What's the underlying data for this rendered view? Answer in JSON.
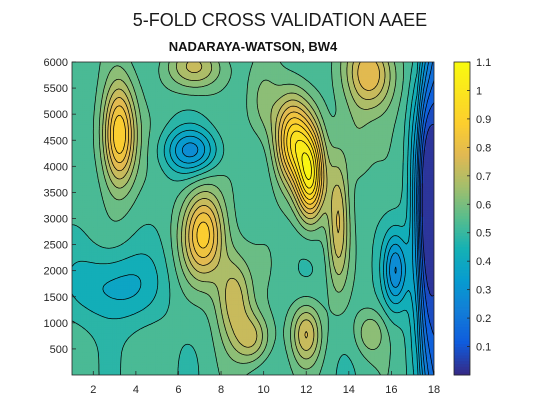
{
  "chart_data": {
    "type": "contour",
    "title": "5-FOLD CROSS VALIDATION AAEE",
    "subtitle": "NADARAYA-WATSON, BW4",
    "xlabel": "",
    "ylabel": "",
    "xlim": [
      1,
      18
    ],
    "ylim": [
      0,
      6000
    ],
    "x_ticks": [
      2,
      4,
      6,
      8,
      10,
      12,
      14,
      16,
      18
    ],
    "y_ticks": [
      500,
      1000,
      1500,
      2000,
      2500,
      3000,
      3500,
      4000,
      4500,
      5000,
      5500,
      6000
    ],
    "colorbar": {
      "range": [
        0,
        1.1
      ],
      "ticks": [
        0.1,
        0.2,
        0.3,
        0.4,
        0.5,
        0.6,
        0.7,
        0.8,
        0.9,
        1,
        1.1
      ],
      "colormap": "parula"
    },
    "contour_levels": [
      0.05,
      0.1,
      0.15,
      0.2,
      0.25,
      0.3,
      0.35,
      0.4,
      0.45,
      0.5,
      0.55,
      0.6,
      0.65,
      0.7,
      0.75,
      0.8,
      0.85,
      0.9,
      0.95,
      1.0,
      1.05
    ],
    "grid": false,
    "peaks": [
      {
        "x": 3.2,
        "y": 4600,
        "z": 0.95
      },
      {
        "x": 7.2,
        "y": 2700,
        "z": 0.9
      },
      {
        "x": 11.3,
        "y": 4500,
        "z": 1.0
      },
      {
        "x": 12.2,
        "y": 4000,
        "z": 0.95
      },
      {
        "x": 9.5,
        "y": 700,
        "z": 0.72
      },
      {
        "x": 12.0,
        "y": 800,
        "z": 0.78
      },
      {
        "x": 15.0,
        "y": 5800,
        "z": 0.8
      },
      {
        "x": 13.5,
        "y": 3000,
        "z": 0.8
      },
      {
        "x": 6.8,
        "y": 5900,
        "z": 0.72
      }
    ],
    "troughs": [
      {
        "x": 17.6,
        "y": 3000,
        "z": 0.1
      },
      {
        "x": 16.2,
        "y": 2000,
        "z": 0.15
      },
      {
        "x": 6.6,
        "y": 4300,
        "z": 0.2
      },
      {
        "x": 3.0,
        "y": 1700,
        "z": 0.3
      }
    ]
  }
}
